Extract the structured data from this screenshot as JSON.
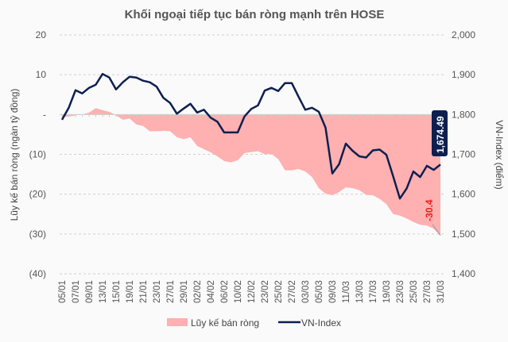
{
  "chart_data": {
    "type": "area+line",
    "title": "Khối ngoại tiếp tục bán ròng mạnh trên HOSE",
    "ylabel_left": "Lũy kế bán ròng (ngàn tỷ đồng)",
    "ylabel_right": "VN-Index (điểm)",
    "left_axis": {
      "range": [
        -40,
        20
      ],
      "ticks": [
        20,
        10,
        0,
        -10,
        -20,
        -30,
        -40
      ],
      "tick_labels": [
        "20",
        "10",
        "-",
        "(10)",
        "(20)",
        "(30)",
        "(40)"
      ]
    },
    "right_axis": {
      "range": [
        1400,
        2000
      ],
      "ticks": [
        2000,
        1900,
        1800,
        1700,
        1600,
        1500,
        1400
      ],
      "tick_labels": [
        "2,000",
        "1,900",
        "1,800",
        "1,700",
        "1,600",
        "1,500",
        "1,400"
      ]
    },
    "x_tick_labels": [
      "05/01",
      "07/01",
      "09/01",
      "13/01",
      "15/01",
      "19/01",
      "21/01",
      "23/01",
      "27/01",
      "29/01",
      "02/02",
      "04/02",
      "06/02",
      "10/02",
      "12/02",
      "23/02",
      "25/02",
      "27/02",
      "03/03",
      "05/03",
      "09/03",
      "11/03",
      "13/03",
      "17/03",
      "19/03",
      "23/03",
      "25/03",
      "27/03",
      "31/03"
    ],
    "x_tick_every": 2,
    "grid": true,
    "legend_position": "bottom",
    "series": [
      {
        "name": "Lũy kế bán ròng",
        "type": "area",
        "color": "#ffb0b0",
        "values": [
          -0.7,
          -0.5,
          -0.2,
          0,
          0.5,
          1.6,
          1.1,
          0.7,
          -0.2,
          -1.3,
          -1,
          -2.5,
          -2.9,
          -4.2,
          -4.2,
          -4.1,
          -4.2,
          -5.7,
          -6.2,
          -5.7,
          -7.9,
          -8.7,
          -9.5,
          -10.5,
          -11.7,
          -12,
          -11.5,
          -9.7,
          -9.4,
          -9.2,
          -10,
          -9.9,
          -11.2,
          -14,
          -14,
          -13.7,
          -14.3,
          -15.7,
          -18.5,
          -19.9,
          -20.3,
          -19.5,
          -18.3,
          -18.5,
          -19,
          -20.2,
          -20.3,
          -21.2,
          -22.5,
          -25,
          -25.4,
          -26.1,
          -27,
          -27.7,
          -27.9,
          -28.7,
          -30.4
        ],
        "last_label": "-30.4",
        "label_color": "#e8201e"
      },
      {
        "name": "VN-Index",
        "type": "line",
        "color": "#0d1f4f",
        "values": [
          1787,
          1817,
          1861,
          1853,
          1867,
          1875,
          1902,
          1893,
          1863,
          1881,
          1895,
          1893,
          1885,
          1881,
          1870,
          1842,
          1829,
          1802,
          1815,
          1827,
          1805,
          1812,
          1792,
          1782,
          1755,
          1755,
          1755,
          1795,
          1814,
          1823,
          1860,
          1867,
          1859,
          1879,
          1879,
          1845,
          1812,
          1817,
          1807,
          1767,
          1652,
          1675,
          1727,
          1709,
          1695,
          1692,
          1710,
          1712,
          1699,
          1645,
          1589,
          1614,
          1657,
          1643,
          1671,
          1661,
          1674.49
        ],
        "last_label": "1,674.49"
      }
    ]
  }
}
